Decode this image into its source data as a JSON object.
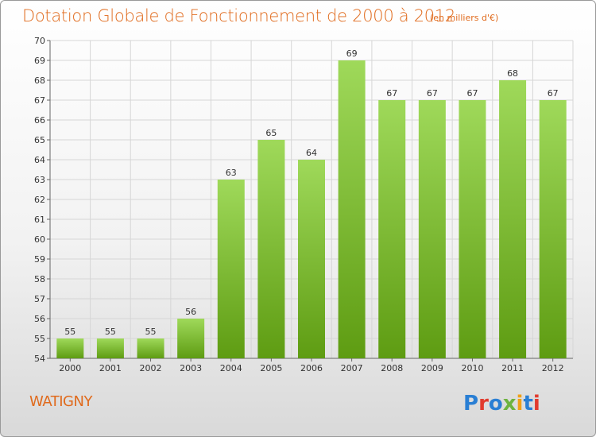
{
  "header": {
    "title": "Dotation Globale de Fonctionnement de 2000 à 2012",
    "unit": "(en milliers d'€)"
  },
  "footer": {
    "commune": "WATIGNY",
    "logo_text": "Proxiti",
    "logo_colors": [
      "#2a7fd4",
      "#e23b2e",
      "#2a7fd4",
      "#6db33f",
      "#f0a018",
      "#2a7fd4",
      "#e23b2e"
    ]
  },
  "colors": {
    "accent": "#e06a1c",
    "bar_top": "#9fd95a",
    "bar_bottom": "#5e9c12",
    "grid": "#d6d6d6"
  },
  "chart_data": {
    "type": "bar",
    "title": "Dotation Globale de Fonctionnement de 2000 à 2012",
    "subtitle": "(en milliers d'€)",
    "xlabel": "",
    "ylabel": "",
    "categories": [
      "2000",
      "2001",
      "2002",
      "2003",
      "2004",
      "2005",
      "2006",
      "2007",
      "2008",
      "2009",
      "2010",
      "2011",
      "2012"
    ],
    "values": [
      55,
      55,
      55,
      56,
      63,
      65,
      64,
      69,
      67,
      67,
      67,
      68,
      67
    ],
    "ylim": [
      54,
      70
    ],
    "yticks": [
      54,
      55,
      56,
      57,
      58,
      59,
      60,
      61,
      62,
      63,
      64,
      65,
      66,
      67,
      68,
      69,
      70
    ],
    "grid": true,
    "legend": "none"
  }
}
